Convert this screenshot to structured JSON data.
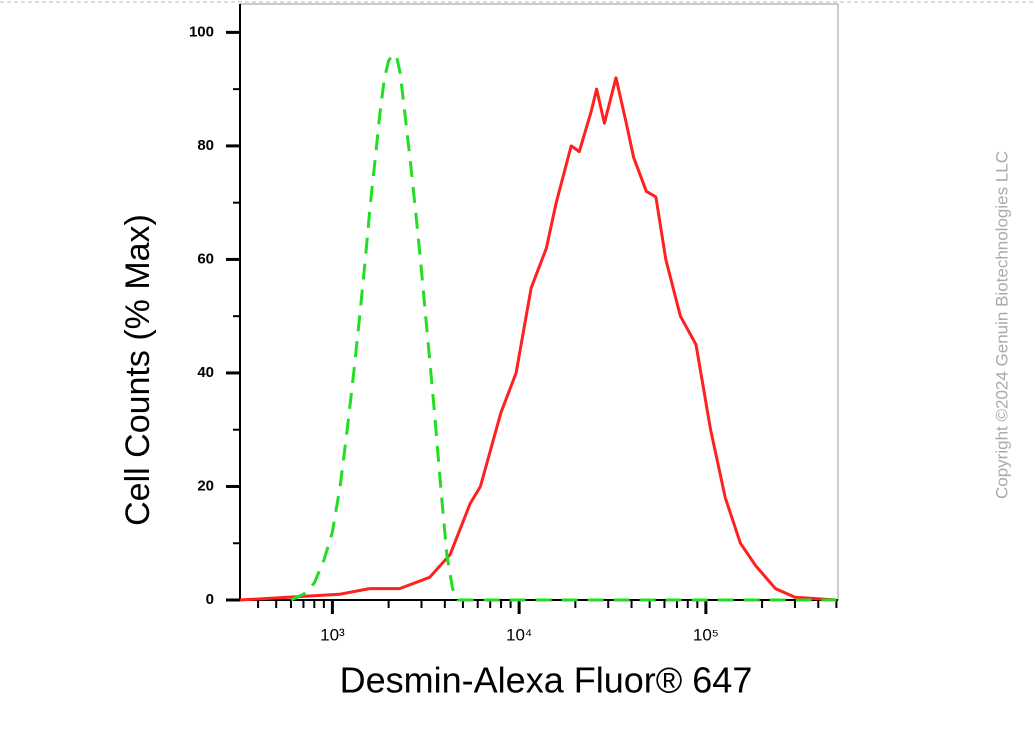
{
  "chart_data": {
    "type": "line",
    "xlabel": "Desmin-Alexa Fluor® 647",
    "ylabel": "Cell Counts (% Max)",
    "watermark": "Copyright ©2024 Genuin Biotechnologies LLC",
    "xscale": "log",
    "xlim": [
      320,
      510000
    ],
    "ylim": [
      0,
      105
    ],
    "xticks": [
      {
        "value": 1000,
        "label": "10³"
      },
      {
        "value": 10000,
        "label": "10⁴"
      },
      {
        "value": 100000,
        "label": "10⁵"
      }
    ],
    "xminorticks": [
      400,
      500,
      600,
      700,
      800,
      900,
      2000,
      3000,
      4000,
      5000,
      6000,
      7000,
      8000,
      9000,
      20000,
      30000,
      40000,
      50000,
      60000,
      70000,
      80000,
      90000,
      200000,
      300000,
      400000,
      500000
    ],
    "yticks": [
      0,
      20,
      40,
      60,
      80,
      100
    ],
    "yminorticks": [
      10,
      30,
      50,
      70,
      90
    ],
    "series": [
      {
        "color": "#ff2020",
        "dashed": false,
        "x": [
          320,
          1090,
          1580,
          2290,
          3320,
          4270,
          5470,
          6200,
          7990,
          9630,
          11600,
          14000,
          15800,
          19000,
          21000,
          24300,
          26000,
          28600,
          33000,
          37500,
          41000,
          48000,
          54000,
          61000,
          73000,
          88500,
          106000,
          127000,
          153000,
          185000,
          236000,
          300000,
          500000
        ],
        "values": [
          0,
          1,
          2,
          2,
          4,
          8,
          17,
          20,
          33,
          40,
          55,
          62,
          70,
          80,
          79,
          86,
          90,
          84,
          92,
          84,
          78,
          72,
          71,
          60,
          50,
          45,
          30,
          18,
          10,
          6,
          2,
          0.5,
          0
        ]
      },
      {
        "color": "#22dd22",
        "dashed": true,
        "x": [
          600,
          700,
          800,
          900,
          1000,
          1100,
          1200,
          1300,
          1400,
          1500,
          1600,
          1700,
          1800,
          1900,
          2000,
          2100,
          2200,
          2300,
          2400,
          2600,
          2800,
          3000,
          3200,
          3500,
          3800,
          4100,
          4400,
          4700,
          10000,
          100000,
          500000
        ],
        "values": [
          0,
          1,
          3,
          7,
          12,
          20,
          30,
          40,
          50,
          60,
          70,
          78,
          86,
          92,
          95,
          96,
          96,
          93,
          88,
          78,
          68,
          58,
          48,
          34,
          20,
          8,
          2,
          0,
          0,
          0,
          0
        ]
      }
    ]
  }
}
